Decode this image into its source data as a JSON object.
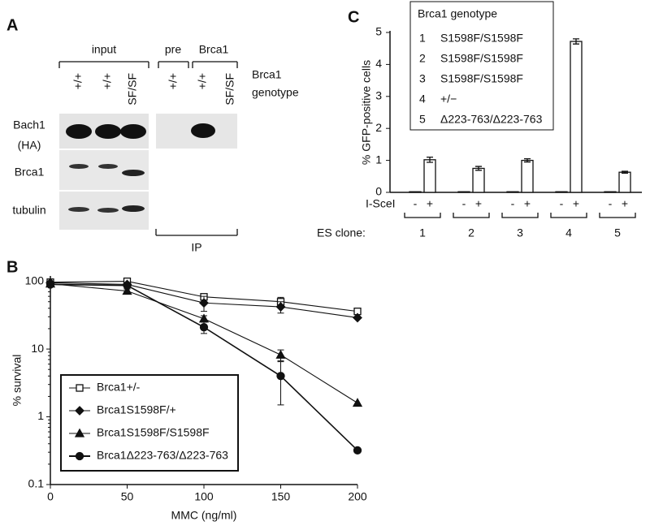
{
  "panel_labels": [
    "A",
    "B",
    "C"
  ],
  "blot": {
    "groups": [
      "input",
      "pre",
      "Brca1"
    ],
    "lanes": [
      "+/+",
      "+/+",
      "SF/SF",
      "+/+",
      "+/+",
      "SF/SF"
    ],
    "genotype_label": [
      "Brca1",
      "genotype"
    ],
    "rows": [
      [
        "Bach1",
        "(HA)"
      ],
      [
        "Brca1"
      ],
      [
        "tubulin"
      ]
    ],
    "ip_label": "IP"
  },
  "chart_data": [
    {
      "type": "line",
      "x_label": "MMC (ng/ml)",
      "y_label": "% survival",
      "x": [
        0,
        50,
        100,
        150,
        200
      ],
      "xlim": [
        0,
        200
      ],
      "xticks": [
        0,
        50,
        100,
        150,
        200
      ],
      "ylim": [
        0.1,
        120
      ],
      "yticks": [
        0.1,
        1,
        10,
        100
      ],
      "log_y": true,
      "legend": "lower left",
      "series": [
        {
          "name": "Brca1+/-",
          "marker": "square-open",
          "color": "#111111",
          "values": [
            97,
            100,
            59,
            50,
            36
          ],
          "errors": [
            0,
            5,
            5,
            8,
            0
          ]
        },
        {
          "name": "Brca1S1598F/+",
          "marker": "diamond",
          "color": "#111111",
          "values": [
            95,
            90,
            48,
            42,
            29
          ],
          "errors": [
            0,
            5,
            12,
            8,
            0
          ]
        },
        {
          "name": "Brca1S1598F/S1598F",
          "marker": "triangle",
          "color": "#111111",
          "values": [
            92,
            72,
            28,
            8.2,
            1.6
          ],
          "errors": [
            0,
            5,
            3,
            1.5,
            0
          ]
        },
        {
          "name": "Brca1Δ223-763/Δ223-763",
          "marker": "circle",
          "color": "#111111",
          "values": [
            90,
            87,
            21,
            4,
            0.32
          ],
          "errors": [
            0,
            8,
            4,
            2.5,
            0
          ]
        }
      ]
    },
    {
      "type": "bar",
      "y_label": "% GFP-positive cells",
      "row_label": "I-SceI",
      "category_label": "ES clone:",
      "categories": [
        "1",
        "2",
        "3",
        "4",
        "5"
      ],
      "ylim": [
        0,
        5
      ],
      "yticks": [
        0,
        1,
        2,
        3,
        4,
        5
      ],
      "series": [
        {
          "name": "-",
          "color": "#ffffff",
          "values": [
            0.02,
            0.02,
            0.02,
            0.02,
            0.02
          ],
          "errors": [
            0,
            0,
            0,
            0,
            0
          ]
        },
        {
          "name": "+",
          "color": "#ffffff",
          "values": [
            1.02,
            0.75,
            1.0,
            4.72,
            0.63
          ],
          "errors": [
            0.08,
            0.06,
            0.05,
            0.08,
            0.03
          ]
        }
      ],
      "legend_title": "Brca1 genotype",
      "legend_items": [
        "S1598F/S1598F",
        "S1598F/S1598F",
        "S1598F/S1598F",
        "+/−",
        "Δ223-763/Δ223-763"
      ]
    }
  ]
}
